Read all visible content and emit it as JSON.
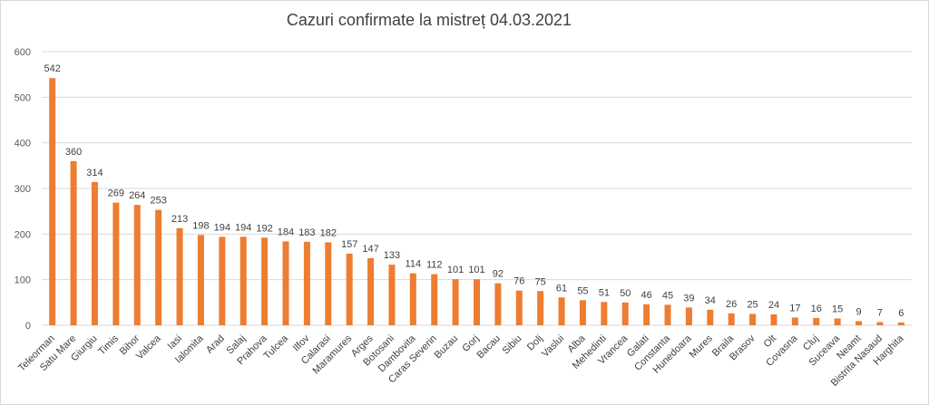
{
  "chart_data": {
    "type": "bar",
    "title": "Cazuri confirmate la mistreț 04.03.2021",
    "xlabel": "",
    "ylabel": "",
    "ylim": [
      0,
      600
    ],
    "yticks": [
      0,
      100,
      200,
      300,
      400,
      500,
      600
    ],
    "grid": true,
    "legend": "none",
    "bar_color": "#ED7D31",
    "grid_color": "#d9d9d9",
    "data_labels": true,
    "categories": [
      "Teleorman",
      "Satu Mare",
      "Giurgiu",
      "Timis",
      "Bihor",
      "Valcea",
      "Iasi",
      "Ialomita",
      "Arad",
      "Salaj",
      "Prahova",
      "Tulcea",
      "Ilfov",
      "Calarasi",
      "Maramures",
      "Arges",
      "Botosani",
      "Dambovita",
      "Caras Severin",
      "Buzau",
      "Gorj",
      "Bacau",
      "Sibiu",
      "Dolj",
      "Vaslui",
      "Alba",
      "Mehedinti",
      "Vrancea",
      "Galati",
      "Constanta",
      "Hunedoara",
      "Mures",
      "Braila",
      "Brasov",
      "Olt",
      "Covasna",
      "Cluj",
      "Suceava",
      "Neamt",
      "Bistrita Nasaud",
      "Harghita"
    ],
    "values": [
      542,
      360,
      314,
      269,
      264,
      253,
      213,
      198,
      194,
      194,
      192,
      184,
      183,
      182,
      157,
      147,
      133,
      114,
      112,
      101,
      101,
      92,
      76,
      75,
      61,
      55,
      51,
      50,
      46,
      45,
      39,
      34,
      26,
      25,
      24,
      17,
      16,
      15,
      9,
      7,
      6
    ]
  }
}
